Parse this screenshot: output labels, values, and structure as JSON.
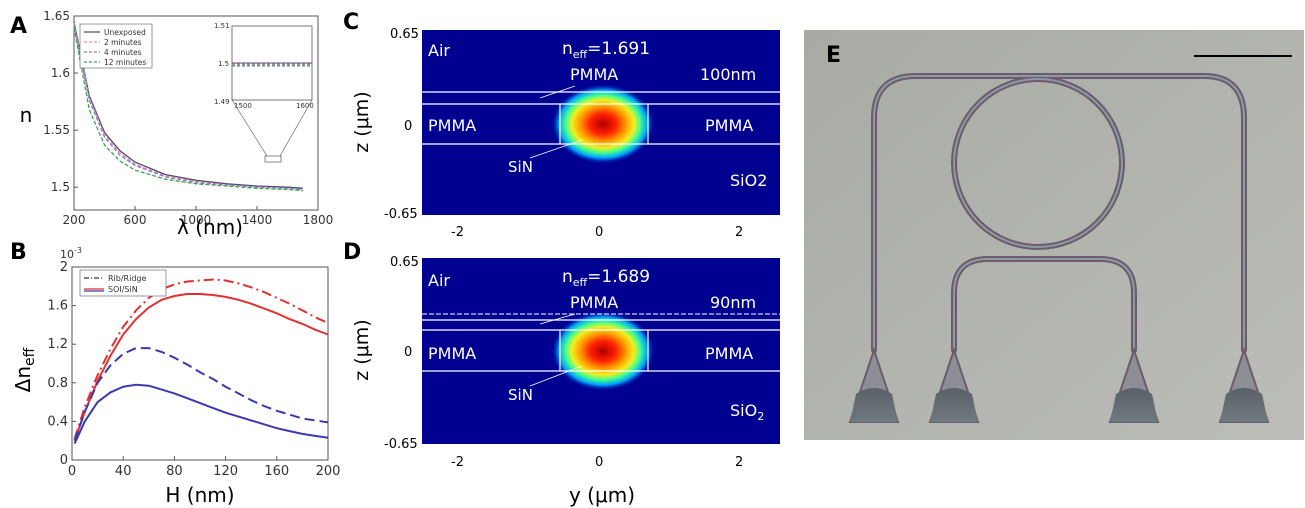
{
  "panels": {
    "A": {
      "letter": "A",
      "xlabel": "λ (nm)",
      "ylabel": "n",
      "xticks": [
        "200",
        "600",
        "1000",
        "1400",
        "1800"
      ],
      "xtick_vals": [
        200,
        600,
        1000,
        1400,
        1800
      ],
      "yticks": [
        "1.5",
        "1.55",
        "1.6",
        "1.65"
      ],
      "ytick_vals": [
        1.5,
        1.55,
        1.6,
        1.65
      ],
      "legend": [
        "Unexposed",
        "2 minutes",
        "4 minutes",
        "12 minutes"
      ],
      "colors": [
        "#4a4a6a",
        "#e88aa0",
        "#8c7fd0",
        "#3aa64a"
      ],
      "inset": {
        "xticks": [
          "1500",
          "1600"
        ],
        "yticks": [
          "1.49",
          "1.5",
          "1.51"
        ]
      }
    },
    "B": {
      "letter": "B",
      "xlabel": "H (nm)",
      "ylabel_main": "Δn",
      "ylabel_sub": "eff",
      "scale": "10",
      "scale_exp": "-3",
      "xticks": [
        "0",
        "40",
        "80",
        "120",
        "160",
        "200"
      ],
      "xtick_vals": [
        0,
        40,
        80,
        120,
        160,
        200
      ],
      "yticks": [
        "0",
        "0.4",
        "0.8",
        "1.2",
        "1.6",
        "2"
      ],
      "ytick_vals": [
        0,
        0.4,
        0.8,
        1.2,
        1.6,
        2
      ],
      "legend": [
        "Rib/Ridge",
        "SOI/SiN"
      ],
      "colors": {
        "red": "#e03030",
        "blue": "#3a3ab0"
      }
    },
    "C": {
      "letter": "C",
      "neff": "n",
      "neff_sub": "eff",
      "neff_val": "=1.691",
      "thickness": "100nm",
      "labels": {
        "air": "Air",
        "pmma_top": "PMMA",
        "pmma_left": "PMMA",
        "pmma_right": "PMMA",
        "sin": "SiN",
        "substrate": "SiO2"
      },
      "ylabel": "z (μm)",
      "yticks": [
        "0.65",
        "0",
        "-0.65"
      ],
      "xticks": [
        "-2",
        "0",
        "2"
      ]
    },
    "D": {
      "letter": "D",
      "neff": "n",
      "neff_sub": "eff",
      "neff_val": "=1.689",
      "thickness": "90nm",
      "labels": {
        "air": "Air",
        "pmma_top": "PMMA",
        "pmma_left": "PMMA",
        "pmma_right": "PMMA",
        "sin": "SiN",
        "substrate": "SiO",
        "substrate_sub": "2"
      },
      "ylabel": "z (μm)",
      "xlabel": "y (μm)",
      "yticks": [
        "0.65",
        "0",
        "-0.65"
      ],
      "xticks": [
        "-2",
        "0",
        "2"
      ]
    },
    "E": {
      "letter": "E"
    }
  },
  "chart_data": [
    {
      "type": "line",
      "panel": "A",
      "xlabel": "λ (nm)",
      "ylabel": "n",
      "xlim": [
        200,
        1800
      ],
      "ylim": [
        1.48,
        1.65
      ],
      "series": [
        {
          "name": "Unexposed",
          "x": [
            200,
            300,
            400,
            500,
            600,
            800,
            1000,
            1200,
            1400,
            1600,
            1700
          ],
          "y": [
            1.645,
            1.58,
            1.548,
            1.532,
            1.522,
            1.511,
            1.506,
            1.503,
            1.501,
            1.5,
            1.499
          ]
        },
        {
          "name": "2 minutes",
          "x": [
            200,
            300,
            400,
            500,
            600,
            800,
            1000,
            1200,
            1400,
            1600,
            1700
          ],
          "y": [
            1.644,
            1.578,
            1.546,
            1.53,
            1.52,
            1.51,
            1.505,
            1.502,
            1.5,
            1.499,
            1.498
          ]
        },
        {
          "name": "4 minutes",
          "x": [
            200,
            300,
            400,
            500,
            600,
            800,
            1000,
            1200,
            1400,
            1600,
            1700
          ],
          "y": [
            1.643,
            1.576,
            1.544,
            1.528,
            1.519,
            1.509,
            1.504,
            1.502,
            1.5,
            1.499,
            1.498
          ]
        },
        {
          "name": "12 minutes",
          "x": [
            200,
            300,
            400,
            500,
            600,
            800,
            1000,
            1200,
            1400,
            1600,
            1700
          ],
          "y": [
            1.64,
            1.568,
            1.537,
            1.523,
            1.515,
            1.507,
            1.503,
            1.501,
            1.499,
            1.498,
            1.497
          ]
        }
      ]
    },
    {
      "type": "line",
      "panel": "B",
      "xlabel": "H (nm)",
      "ylabel": "Δneff",
      "xlim": [
        0,
        200
      ],
      "ylim": [
        0,
        2
      ],
      "series": [
        {
          "name": "red-dashed",
          "x": [
            2,
            10,
            20,
            30,
            40,
            50,
            60,
            70,
            80,
            90,
            100,
            110,
            120,
            130,
            140,
            150,
            160,
            170,
            180,
            190,
            200
          ],
          "y": [
            0.22,
            0.55,
            0.88,
            1.15,
            1.38,
            1.55,
            1.68,
            1.77,
            1.82,
            1.85,
            1.86,
            1.87,
            1.86,
            1.83,
            1.79,
            1.74,
            1.68,
            1.62,
            1.55,
            1.48,
            1.42
          ]
        },
        {
          "name": "red-solid",
          "x": [
            2,
            10,
            20,
            30,
            40,
            50,
            60,
            70,
            80,
            90,
            100,
            110,
            120,
            130,
            140,
            150,
            160,
            170,
            180,
            190,
            200
          ],
          "y": [
            0.2,
            0.5,
            0.82,
            1.08,
            1.3,
            1.46,
            1.58,
            1.66,
            1.7,
            1.72,
            1.72,
            1.71,
            1.69,
            1.66,
            1.62,
            1.57,
            1.52,
            1.46,
            1.41,
            1.35,
            1.3
          ]
        },
        {
          "name": "blue-dashed",
          "x": [
            2,
            10,
            20,
            30,
            40,
            50,
            60,
            70,
            80,
            90,
            100,
            110,
            120,
            130,
            140,
            150,
            160,
            170,
            180,
            190,
            200
          ],
          "y": [
            0.2,
            0.5,
            0.8,
            0.98,
            1.1,
            1.16,
            1.16,
            1.12,
            1.06,
            0.99,
            0.91,
            0.84,
            0.76,
            0.69,
            0.62,
            0.56,
            0.51,
            0.47,
            0.43,
            0.41,
            0.39
          ]
        },
        {
          "name": "blue-solid",
          "x": [
            2,
            10,
            20,
            30,
            40,
            50,
            60,
            70,
            80,
            90,
            100,
            110,
            120,
            130,
            140,
            150,
            160,
            170,
            180,
            190,
            200
          ],
          "y": [
            0.17,
            0.4,
            0.6,
            0.7,
            0.76,
            0.78,
            0.77,
            0.73,
            0.69,
            0.64,
            0.59,
            0.54,
            0.49,
            0.45,
            0.41,
            0.37,
            0.33,
            0.3,
            0.27,
            0.25,
            0.23
          ]
        }
      ]
    }
  ]
}
